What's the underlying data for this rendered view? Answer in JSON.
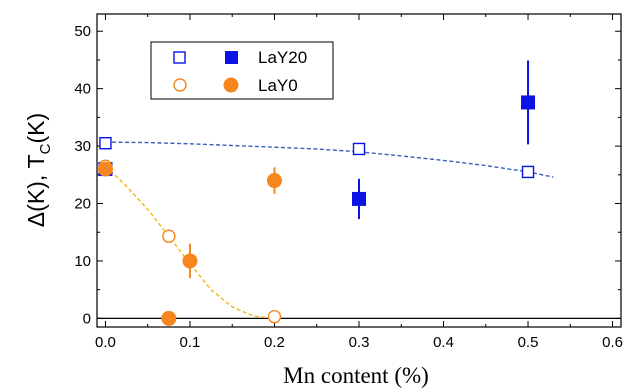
{
  "chart_data": {
    "type": "scatter",
    "xlabel": "Mn content (%)",
    "ylabel": "Δ(K), T",
    "ylabel_sub": "C",
    "ylabel_suffix": "(K)",
    "xlim": [
      -0.01,
      0.61
    ],
    "ylim": [
      -1.5,
      53
    ],
    "xticks": [
      0.0,
      0.1,
      0.2,
      0.3,
      0.4,
      0.5,
      0.6
    ],
    "xtick_labels": [
      "0.0",
      "0.1",
      "0.2",
      "0.3",
      "0.4",
      "0.5",
      "0.6"
    ],
    "yticks": [
      0,
      10,
      20,
      30,
      40,
      50
    ],
    "ytick_labels": [
      "0",
      "10",
      "20",
      "30",
      "40",
      "50"
    ],
    "horizontal_line_y": 0,
    "grid": false,
    "legend_position": "top-left",
    "legend": [
      {
        "label": "LaY20",
        "color": "#0a12e6"
      },
      {
        "label": "LaY0",
        "color": "#f7861e"
      }
    ],
    "series": [
      {
        "name": "LaY20",
        "role": "open",
        "marker": "square",
        "fill": "none",
        "color": "#0a12e6",
        "x": [
          0.0,
          0.3,
          0.5
        ],
        "y": [
          30.5,
          29.5,
          25.5
        ]
      },
      {
        "name": "LaY20",
        "role": "filled",
        "marker": "square",
        "fill": "solid",
        "color": "#0a12e6",
        "x": [
          0.0,
          0.3,
          0.5
        ],
        "y": [
          26.0,
          20.8,
          37.6
        ],
        "yerr": [
          1.2,
          3.5,
          7.3
        ]
      },
      {
        "name": "LaY0",
        "role": "open",
        "marker": "circle",
        "fill": "none",
        "color": "#f7861e",
        "x": [
          0.0,
          0.075,
          0.2
        ],
        "y": [
          26.5,
          14.3,
          0.3
        ]
      },
      {
        "name": "LaY0",
        "role": "filled",
        "marker": "circle",
        "fill": "solid",
        "color": "#f7861e",
        "x": [
          0.0,
          0.075,
          0.1,
          0.2
        ],
        "y": [
          26.0,
          0.0,
          10.0,
          24.0
        ],
        "yerr": [
          0,
          0,
          3.0,
          2.3
        ]
      }
    ],
    "fit_curves": [
      {
        "color": "#3a5fb8",
        "style": "dashed",
        "x": [
          0.0,
          0.05,
          0.1,
          0.15,
          0.2,
          0.25,
          0.3,
          0.35,
          0.4,
          0.45,
          0.5,
          0.53
        ],
        "y": [
          30.7,
          30.6,
          30.4,
          30.1,
          29.8,
          29.5,
          29.0,
          28.3,
          27.5,
          26.6,
          25.5,
          24.6
        ]
      },
      {
        "color": "#f0b81e",
        "style": "dashed",
        "x": [
          0.0,
          0.025,
          0.05,
          0.075,
          0.1,
          0.125,
          0.15,
          0.175,
          0.2
        ],
        "y": [
          26.5,
          23.0,
          19.0,
          14.3,
          9.5,
          5.0,
          2.0,
          0.4,
          0.0
        ]
      }
    ]
  }
}
